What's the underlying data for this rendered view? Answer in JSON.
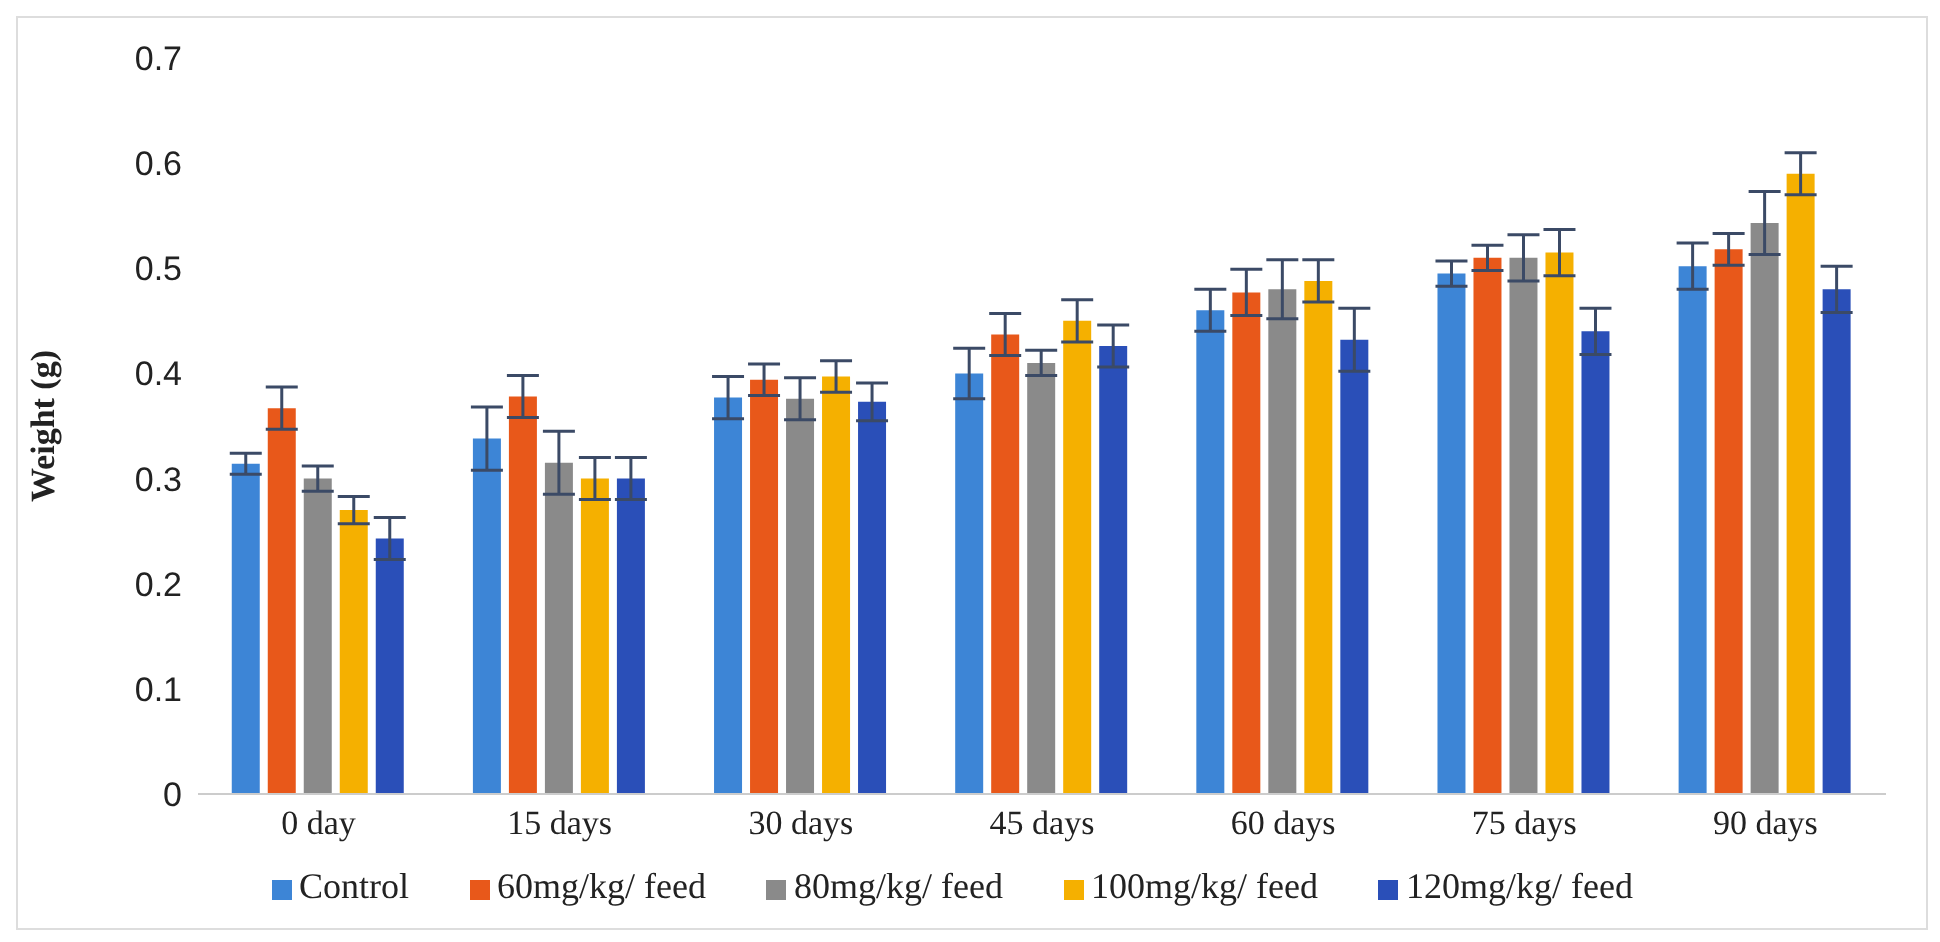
{
  "chart_data": {
    "type": "bar",
    "ylabel": "Weight (g)",
    "categories": [
      "0 day",
      "15 days",
      "30 days",
      "45 days",
      "60 days",
      "75 days",
      "90 days"
    ],
    "series": [
      {
        "name": "Control",
        "color": "#3d85d6",
        "values": [
          0.314,
          0.338,
          0.377,
          0.4,
          0.46,
          0.495,
          0.502
        ],
        "errors": [
          0.01,
          0.03,
          0.02,
          0.024,
          0.02,
          0.012,
          0.022
        ]
      },
      {
        "name": "60mg/kg/ feed",
        "color": "#e8581a",
        "values": [
          0.367,
          0.378,
          0.394,
          0.437,
          0.477,
          0.51,
          0.518
        ],
        "errors": [
          0.02,
          0.02,
          0.015,
          0.02,
          0.022,
          0.012,
          0.015
        ]
      },
      {
        "name": "80mg/kg/ feed",
        "color": "#8a8a8a",
        "values": [
          0.3,
          0.315,
          0.376,
          0.41,
          0.48,
          0.51,
          0.543
        ],
        "errors": [
          0.012,
          0.03,
          0.02,
          0.012,
          0.028,
          0.022,
          0.03
        ]
      },
      {
        "name": "100mg/kg/ feed",
        "color": "#f5b000",
        "values": [
          0.27,
          0.3,
          0.397,
          0.45,
          0.488,
          0.515,
          0.59
        ],
        "errors": [
          0.013,
          0.02,
          0.015,
          0.02,
          0.02,
          0.022,
          0.02
        ]
      },
      {
        "name": "120mg/kg/ feed",
        "color": "#2a4fb8",
        "values": [
          0.243,
          0.3,
          0.373,
          0.426,
          0.432,
          0.44,
          0.48
        ],
        "errors": [
          0.02,
          0.02,
          0.018,
          0.02,
          0.03,
          0.022,
          0.022
        ]
      }
    ],
    "ylim": [
      0,
      0.7
    ],
    "yticks": [
      0,
      0.1,
      0.2,
      0.3,
      0.4,
      0.5,
      0.6,
      0.7
    ],
    "grid": false,
    "legend": "bottom"
  }
}
